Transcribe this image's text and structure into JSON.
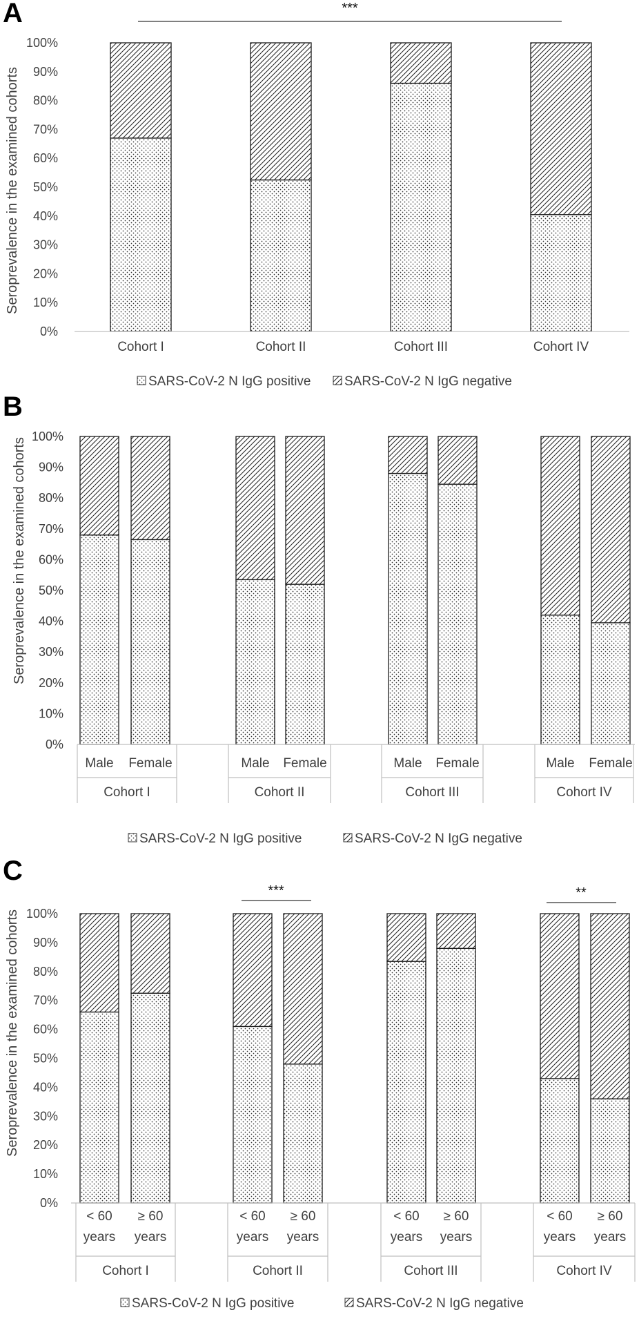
{
  "colors": {
    "bar_stroke": "#1a1a1a",
    "axis": "#bfbfbf",
    "text": "#404040"
  },
  "panels": [
    {
      "letter": "A",
      "ylabel": "Seroprevalence in the examined cohorts",
      "legend": [
        "SARS-CoV-2 N IgG positive",
        "SARS-CoV-2 N IgG negative"
      ],
      "significance": [
        {
          "label": "***"
        }
      ],
      "chart_data": {
        "type": "bar",
        "stacked": true,
        "percent": true,
        "categories": [
          "Cohort I",
          "Cohort II",
          "Cohort III",
          "Cohort IV"
        ],
        "series": [
          {
            "name": "SARS-CoV-2 N IgG positive",
            "values": [
              67,
              52.5,
              86,
              40.5
            ]
          },
          {
            "name": "SARS-CoV-2 N IgG negative",
            "values": [
              33,
              47.5,
              14,
              59.5
            ]
          }
        ],
        "yticks": [
          "0%",
          "10%",
          "20%",
          "30%",
          "40%",
          "50%",
          "60%",
          "70%",
          "80%",
          "90%",
          "100%"
        ],
        "ylim": [
          0,
          100
        ],
        "legend_position": "bottom"
      }
    },
    {
      "letter": "B",
      "ylabel": "Seroprevalence in the examined cohorts",
      "legend": [
        "SARS-CoV-2 N IgG positive",
        "SARS-CoV-2 N IgG negative"
      ],
      "significance": [],
      "chart_data": {
        "type": "bar",
        "stacked": true,
        "percent": true,
        "groups": [
          "Cohort I",
          "Cohort II",
          "Cohort III",
          "Cohort IV"
        ],
        "subcategories": [
          "Male",
          "Female"
        ],
        "series": [
          {
            "name": "SARS-CoV-2 N IgG positive",
            "values": [
              68,
              66.5,
              53.5,
              52,
              88,
              84.5,
              42,
              39.5
            ]
          },
          {
            "name": "SARS-CoV-2 N IgG negative",
            "values": [
              32,
              33.5,
              46.5,
              48,
              12,
              15.5,
              58,
              60.5
            ]
          }
        ],
        "yticks": [
          "0%",
          "10%",
          "20%",
          "30%",
          "40%",
          "50%",
          "60%",
          "70%",
          "80%",
          "90%",
          "100%"
        ],
        "ylim": [
          0,
          100
        ],
        "legend_position": "bottom"
      }
    },
    {
      "letter": "C",
      "ylabel": "Seroprevalence in the examined cohorts",
      "legend": [
        "SARS-CoV-2 N IgG positive",
        "SARS-CoV-2 N IgG negative"
      ],
      "significance": [
        {
          "label": "***",
          "group": 1
        },
        {
          "label": "**",
          "group": 3
        }
      ],
      "chart_data": {
        "type": "bar",
        "stacked": true,
        "percent": true,
        "groups": [
          "Cohort I",
          "Cohort II",
          "Cohort III",
          "Cohort IV"
        ],
        "subcategories": [
          [
            "< 60",
            "years"
          ],
          [
            "≥ 60",
            "years"
          ]
        ],
        "series": [
          {
            "name": "SARS-CoV-2 N IgG positive",
            "values": [
              66,
              72.5,
              61,
              48,
              83.5,
              88,
              43,
              36
            ]
          },
          {
            "name": "SARS-CoV-2 N IgG negative",
            "values": [
              34,
              27.5,
              39,
              52,
              16.5,
              12,
              57,
              64
            ]
          }
        ],
        "yticks": [
          "0%",
          "10%",
          "20%",
          "30%",
          "40%",
          "50%",
          "60%",
          "70%",
          "80%",
          "90%",
          "100%"
        ],
        "ylim": [
          0,
          100
        ],
        "legend_position": "bottom"
      }
    }
  ]
}
